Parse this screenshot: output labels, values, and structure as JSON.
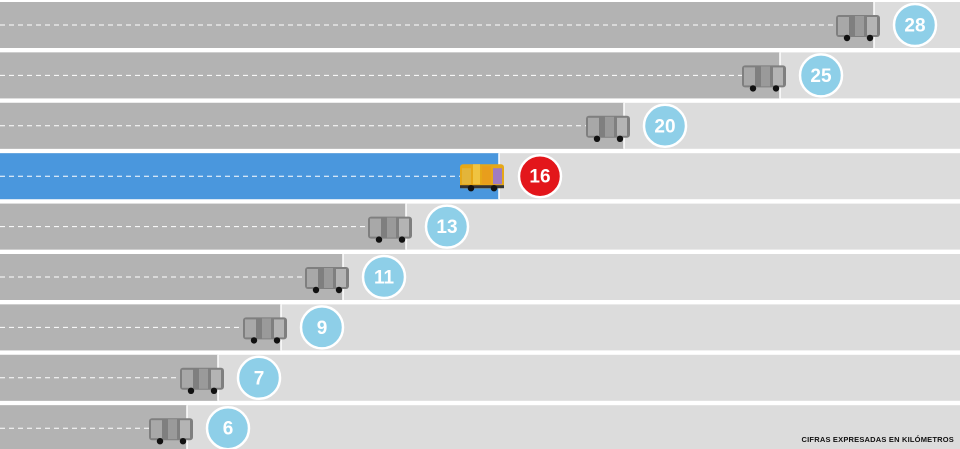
{
  "chart_data": {
    "type": "bar",
    "orientation": "horizontal",
    "categories": [
      "",
      "",
      "",
      "",
      "",
      "",
      "",
      "",
      ""
    ],
    "values": [
      28,
      25,
      20,
      16,
      13,
      11,
      9,
      7,
      6
    ],
    "highlight_index": 3,
    "xlim": [
      0,
      32
    ],
    "title": "",
    "xlabel": "",
    "ylabel": "",
    "grid": false,
    "legend": "none",
    "note": "CIFRAS EXPRESADAS EN KILÓMETROS"
  },
  "colors": {
    "lane_background": "#dcdcdc",
    "bar": "#b3b3b3",
    "highlight_bar": "#4a97dd",
    "badge": "#8ecfe8",
    "highlight_badge": "#e3161b",
    "vehicle": "#7f7f7f",
    "bus": "#e6a817"
  },
  "icons": {
    "default_vehicle": "car-icon",
    "highlight_vehicle": "bus-icon"
  }
}
